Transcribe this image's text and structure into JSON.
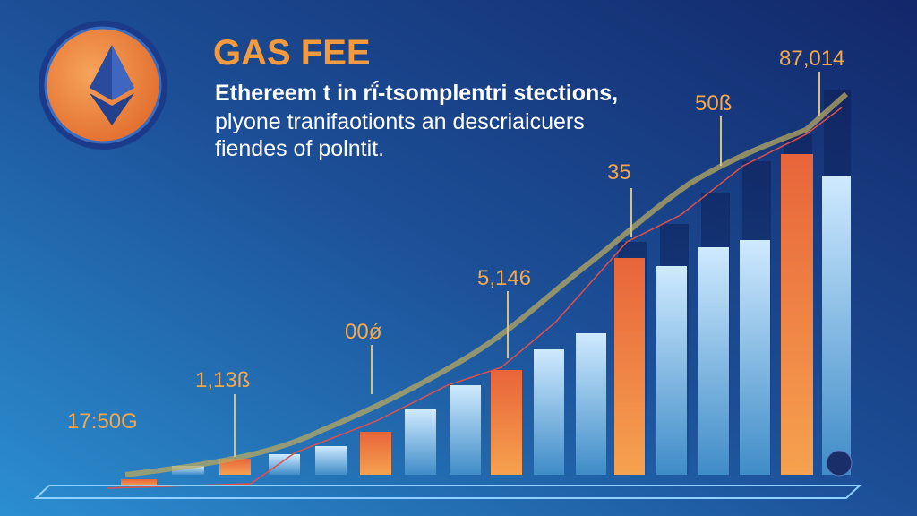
{
  "header": {
    "title": "GAS FEE",
    "description": [
      "Ethereem t in rḯ-tsomplentri stections,",
      "plyone tranifaotionts an descriaicuers",
      "fiendes of polntit."
    ]
  },
  "callouts": [
    "17:50G",
    "1,13ß",
    "00ǿ",
    "5,146",
    "35",
    "50ß",
    "87,014"
  ]
}
